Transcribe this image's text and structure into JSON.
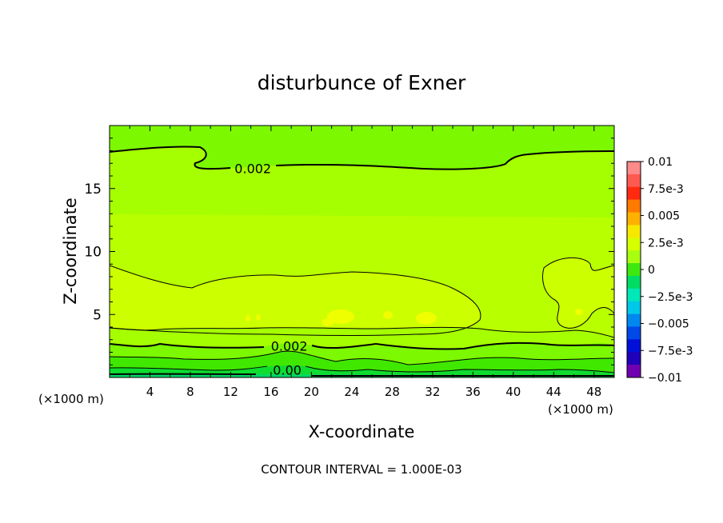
{
  "chart_data": {
    "type": "contour",
    "title": "disturbunce of Exner",
    "xlabel": "X-coordinate",
    "ylabel": "Z-coordinate",
    "x_unit_left": "(×1000 m)",
    "x_unit_right": "(×1000 m)",
    "footer": "CONTOUR INTERVAL = 1.000E-03",
    "xlim": [
      0,
      50
    ],
    "ylim": [
      0,
      20
    ],
    "x_ticks": [
      4,
      8,
      12,
      16,
      20,
      24,
      28,
      32,
      36,
      40,
      44,
      48
    ],
    "y_ticks": [
      5,
      10,
      15
    ],
    "contour_interval": 0.001,
    "contour_labels": [
      {
        "text": "0.002",
        "x": 14.2,
        "z": 16.6
      },
      {
        "text": "0.002",
        "x": 17.8,
        "z": 2.5
      },
      {
        "text": "0.00",
        "x": 17.6,
        "z": 0.6
      }
    ],
    "colorbar": {
      "tick_labels": [
        "0.01",
        "7.5e-3",
        "0.005",
        "2.5e-3",
        "0",
        "−2.5e-3",
        "−0.005",
        "−7.5e-3",
        "−0.01"
      ],
      "colors": [
        "#ff8a8a",
        "#ff5a50",
        "#ff2a10",
        "#ff7a00",
        "#ffb000",
        "#f7e800",
        "#d6ff00",
        "#a8ff10",
        "#3ee810",
        "#00dc64",
        "#00e8b8",
        "#00c8e8",
        "#0088f0",
        "#0048e8",
        "#0010d8",
        "#2000b8",
        "#7000b0"
      ]
    }
  }
}
